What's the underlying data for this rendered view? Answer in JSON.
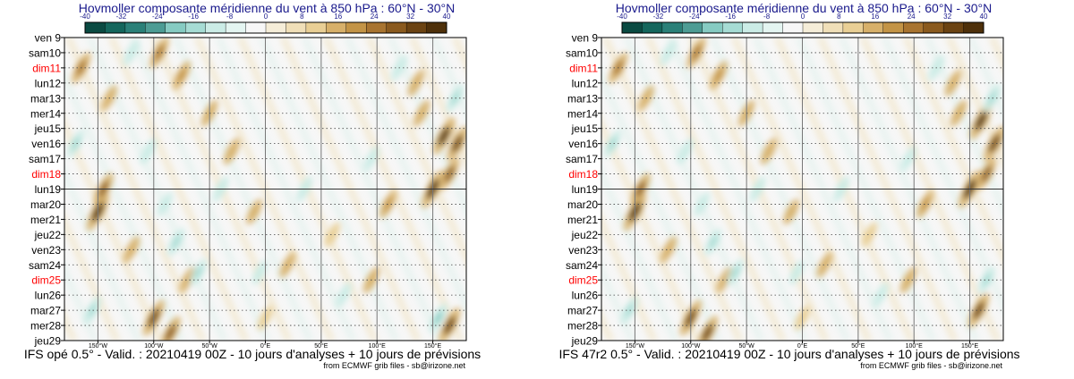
{
  "chart_data": [
    {
      "type": "heatmap",
      "title": "Hovmoller composante méridienne du vent à 850 hPa : 60°N - 30°N",
      "colorbar": {
        "ticks": [
          "-40",
          "-32",
          "-24",
          "-16",
          "-8",
          "0",
          "8",
          "16",
          "24",
          "32",
          "40"
        ],
        "colors": [
          "#0a4a42",
          "#14665c",
          "#2a8078",
          "#4d9c94",
          "#86cbc2",
          "#a6dcd4",
          "#cbece6",
          "#e4f5f1",
          "#f7f7f7",
          "#f5edd8",
          "#f0dfb8",
          "#e9cf95",
          "#d7b06a",
          "#c39446",
          "#a87430",
          "#8a5a1e",
          "#6b4312",
          "#4e300a"
        ]
      },
      "y_labels": [
        {
          "text": "ven 9",
          "color": "#000000"
        },
        {
          "text": "sam10",
          "color": "#000000"
        },
        {
          "text": "dim11",
          "color": "#ff0000"
        },
        {
          "text": "lun12",
          "color": "#000000"
        },
        {
          "text": "mar13",
          "color": "#000000"
        },
        {
          "text": "mer14",
          "color": "#000000"
        },
        {
          "text": "jeu15",
          "color": "#000000"
        },
        {
          "text": "ven16",
          "color": "#000000"
        },
        {
          "text": "sam17",
          "color": "#000000"
        },
        {
          "text": "dim18",
          "color": "#ff0000"
        },
        {
          "text": "lun19",
          "color": "#000000"
        },
        {
          "text": "mar20",
          "color": "#000000"
        },
        {
          "text": "mer21",
          "color": "#000000"
        },
        {
          "text": "jeu22",
          "color": "#000000"
        },
        {
          "text": "ven23",
          "color": "#000000"
        },
        {
          "text": "sam24",
          "color": "#000000"
        },
        {
          "text": "dim25",
          "color": "#ff0000"
        },
        {
          "text": "lun26",
          "color": "#000000"
        },
        {
          "text": "mar27",
          "color": "#000000"
        },
        {
          "text": "mer28",
          "color": "#000000"
        },
        {
          "text": "jeu29",
          "color": "#000000"
        }
      ],
      "x_ticks": [
        {
          "label": "150°W",
          "lon": -150
        },
        {
          "label": "100°W",
          "lon": -100
        },
        {
          "label": "50°W",
          "lon": -50
        },
        {
          "label": "0°E",
          "lon": 0
        },
        {
          "label": "50°E",
          "lon": 50
        },
        {
          "label": "100°E",
          "lon": 100
        },
        {
          "label": "150°E",
          "lon": 150
        }
      ],
      "xlim": [
        -180,
        180
      ],
      "analysis_end_label": "lun19",
      "blobs": [
        {
          "lon": -165,
          "day": 2,
          "v": 22
        },
        {
          "lon": -150,
          "day": 11.5,
          "v": 34
        },
        {
          "lon": -145,
          "day": 10,
          "v": 24
        },
        {
          "lon": -95,
          "day": 1,
          "v": 22
        },
        {
          "lon": -75,
          "day": 2.5,
          "v": 18
        },
        {
          "lon": -100,
          "day": 18.5,
          "v": 30
        },
        {
          "lon": -85,
          "day": 19.5,
          "v": 26
        },
        {
          "lon": -50,
          "day": 5,
          "v": 14
        },
        {
          "lon": -30,
          "day": 7.5,
          "v": 14
        },
        {
          "lon": -120,
          "day": 14,
          "v": 14
        },
        {
          "lon": -70,
          "day": 16,
          "v": 12
        },
        {
          "lon": -10,
          "day": 11.5,
          "v": 12
        },
        {
          "lon": 20,
          "day": 15,
          "v": 12
        },
        {
          "lon": 60,
          "day": 13,
          "v": 10
        },
        {
          "lon": 110,
          "day": 11,
          "v": 16
        },
        {
          "lon": 140,
          "day": 5,
          "v": 14
        },
        {
          "lon": 160,
          "day": 6.5,
          "v": 32
        },
        {
          "lon": 172,
          "day": 7,
          "v": 28
        },
        {
          "lon": 150,
          "day": 10,
          "v": 34
        },
        {
          "lon": 165,
          "day": 9,
          "v": 24
        },
        {
          "lon": 165,
          "day": 19,
          "v": 30
        },
        {
          "lon": 135,
          "day": 3,
          "v": 14
        },
        {
          "lon": 95,
          "day": 16,
          "v": 14
        },
        {
          "lon": 0,
          "day": 18.5,
          "v": 10
        },
        {
          "lon": -140,
          "day": 4,
          "v": 12
        },
        {
          "lon": -170,
          "day": 7,
          "v": -16
        },
        {
          "lon": -155,
          "day": 18,
          "v": -16
        },
        {
          "lon": -105,
          "day": 7.5,
          "v": -12
        },
        {
          "lon": -80,
          "day": 13.5,
          "v": -16
        },
        {
          "lon": -60,
          "day": 15.5,
          "v": -14
        },
        {
          "lon": -40,
          "day": 10,
          "v": -12
        },
        {
          "lon": -5,
          "day": 15.5,
          "v": -10
        },
        {
          "lon": 35,
          "day": 10,
          "v": -12
        },
        {
          "lon": 95,
          "day": 8,
          "v": -10
        },
        {
          "lon": 120,
          "day": 2,
          "v": -12
        },
        {
          "lon": 170,
          "day": 4,
          "v": -16
        },
        {
          "lon": 155,
          "day": 18.5,
          "v": -18
        },
        {
          "lon": -120,
          "day": 1,
          "v": -12
        },
        {
          "lon": -90,
          "day": 11,
          "v": -10
        },
        {
          "lon": 70,
          "day": 17,
          "v": -10
        }
      ],
      "footer": "IFS opé 0.5° - Valid. : 20210419 00Z - 10 jours d'analyses + 10 jours de prévisions",
      "credit": "from ECMWF grib files - sb@irizone.net"
    },
    {
      "type": "heatmap",
      "title": "Hovmoller composante méridienne du vent à 850 hPa : 60°N - 30°N",
      "colorbar": {
        "ticks": [
          "-40",
          "-32",
          "-24",
          "-16",
          "-8",
          "0",
          "8",
          "16",
          "24",
          "32",
          "40"
        ],
        "colors": [
          "#0a4a42",
          "#14665c",
          "#2a8078",
          "#4d9c94",
          "#86cbc2",
          "#a6dcd4",
          "#cbece6",
          "#e4f5f1",
          "#f7f7f7",
          "#f5edd8",
          "#f0dfb8",
          "#e9cf95",
          "#d7b06a",
          "#c39446",
          "#a87430",
          "#8a5a1e",
          "#6b4312",
          "#4e300a"
        ]
      },
      "y_labels": [
        {
          "text": "ven 9",
          "color": "#000000"
        },
        {
          "text": "sam10",
          "color": "#000000"
        },
        {
          "text": "dim11",
          "color": "#ff0000"
        },
        {
          "text": "lun12",
          "color": "#000000"
        },
        {
          "text": "mar13",
          "color": "#000000"
        },
        {
          "text": "mer14",
          "color": "#000000"
        },
        {
          "text": "jeu15",
          "color": "#000000"
        },
        {
          "text": "ven16",
          "color": "#000000"
        },
        {
          "text": "sam17",
          "color": "#000000"
        },
        {
          "text": "dim18",
          "color": "#ff0000"
        },
        {
          "text": "lun19",
          "color": "#000000"
        },
        {
          "text": "mar20",
          "color": "#000000"
        },
        {
          "text": "mer21",
          "color": "#000000"
        },
        {
          "text": "jeu22",
          "color": "#000000"
        },
        {
          "text": "ven23",
          "color": "#000000"
        },
        {
          "text": "sam24",
          "color": "#000000"
        },
        {
          "text": "dim25",
          "color": "#ff0000"
        },
        {
          "text": "lun26",
          "color": "#000000"
        },
        {
          "text": "mar27",
          "color": "#000000"
        },
        {
          "text": "mer28",
          "color": "#000000"
        },
        {
          "text": "jeu29",
          "color": "#000000"
        }
      ],
      "x_ticks": [
        {
          "label": "150°W",
          "lon": -150
        },
        {
          "label": "100°W",
          "lon": -100
        },
        {
          "label": "50°W",
          "lon": -50
        },
        {
          "label": "0°E",
          "lon": 0
        },
        {
          "label": "50°E",
          "lon": 50
        },
        {
          "label": "100°E",
          "lon": 100
        },
        {
          "label": "150°E",
          "lon": 150
        }
      ],
      "xlim": [
        -180,
        180
      ],
      "analysis_end_label": "lun19",
      "blobs": [
        {
          "lon": -165,
          "day": 2,
          "v": 22
        },
        {
          "lon": -150,
          "day": 11.5,
          "v": 34
        },
        {
          "lon": -145,
          "day": 10,
          "v": 24
        },
        {
          "lon": -95,
          "day": 1,
          "v": 22
        },
        {
          "lon": -75,
          "day": 2.5,
          "v": 18
        },
        {
          "lon": -100,
          "day": 18.5,
          "v": 30
        },
        {
          "lon": -85,
          "day": 19.5,
          "v": 28
        },
        {
          "lon": -50,
          "day": 5,
          "v": 14
        },
        {
          "lon": -30,
          "day": 7.5,
          "v": 14
        },
        {
          "lon": -120,
          "day": 14,
          "v": 14
        },
        {
          "lon": -70,
          "day": 16,
          "v": 12
        },
        {
          "lon": -10,
          "day": 11.5,
          "v": 12
        },
        {
          "lon": 20,
          "day": 15,
          "v": 12
        },
        {
          "lon": 60,
          "day": 13,
          "v": 10
        },
        {
          "lon": 110,
          "day": 11,
          "v": 16
        },
        {
          "lon": 140,
          "day": 5,
          "v": 14
        },
        {
          "lon": 160,
          "day": 5.5,
          "v": 32
        },
        {
          "lon": 172,
          "day": 7,
          "v": 30
        },
        {
          "lon": 150,
          "day": 10,
          "v": 34
        },
        {
          "lon": 165,
          "day": 9,
          "v": 24
        },
        {
          "lon": 158,
          "day": 18,
          "v": 28
        },
        {
          "lon": 135,
          "day": 3,
          "v": 14
        },
        {
          "lon": 95,
          "day": 16,
          "v": 14
        },
        {
          "lon": 0,
          "day": 18.5,
          "v": 10
        },
        {
          "lon": -140,
          "day": 4,
          "v": 12
        },
        {
          "lon": -170,
          "day": 7,
          "v": -16
        },
        {
          "lon": -155,
          "day": 18,
          "v": -16
        },
        {
          "lon": -105,
          "day": 7.5,
          "v": -12
        },
        {
          "lon": -80,
          "day": 13.5,
          "v": -14
        },
        {
          "lon": -60,
          "day": 15.5,
          "v": -14
        },
        {
          "lon": -40,
          "day": 10,
          "v": -12
        },
        {
          "lon": -5,
          "day": 15.5,
          "v": -10
        },
        {
          "lon": 35,
          "day": 10,
          "v": -12
        },
        {
          "lon": 95,
          "day": 8,
          "v": -10
        },
        {
          "lon": 120,
          "day": 2,
          "v": -12
        },
        {
          "lon": 170,
          "day": 4,
          "v": -16
        },
        {
          "lon": 165,
          "day": 16,
          "v": -14
        },
        {
          "lon": -120,
          "day": 1,
          "v": -12
        },
        {
          "lon": -90,
          "day": 11,
          "v": -10
        },
        {
          "lon": 70,
          "day": 17,
          "v": -10
        }
      ],
      "footer": "IFS 47r2 0.5° - Valid. : 20210419 00Z - 10 jours d'analyses + 10 jours de prévisions",
      "credit": "from ECMWF grib files - sb@irizone.net"
    }
  ]
}
